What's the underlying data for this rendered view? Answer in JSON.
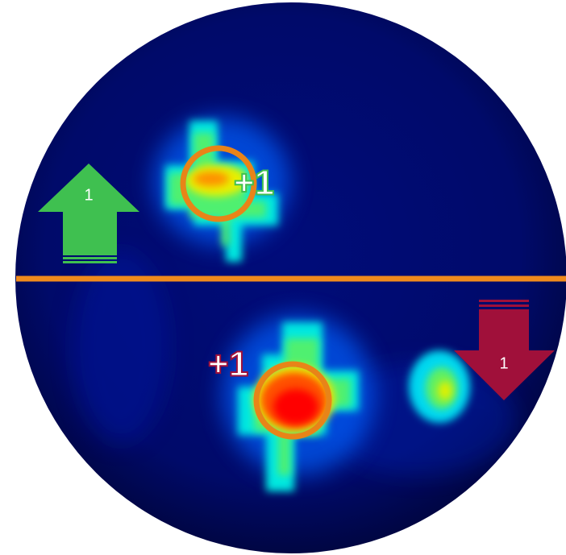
{
  "up_counter": {
    "label": "1"
  },
  "down_counter": {
    "label": "1"
  },
  "events": [
    {
      "label": "+1"
    },
    {
      "label": "+1"
    }
  ]
}
